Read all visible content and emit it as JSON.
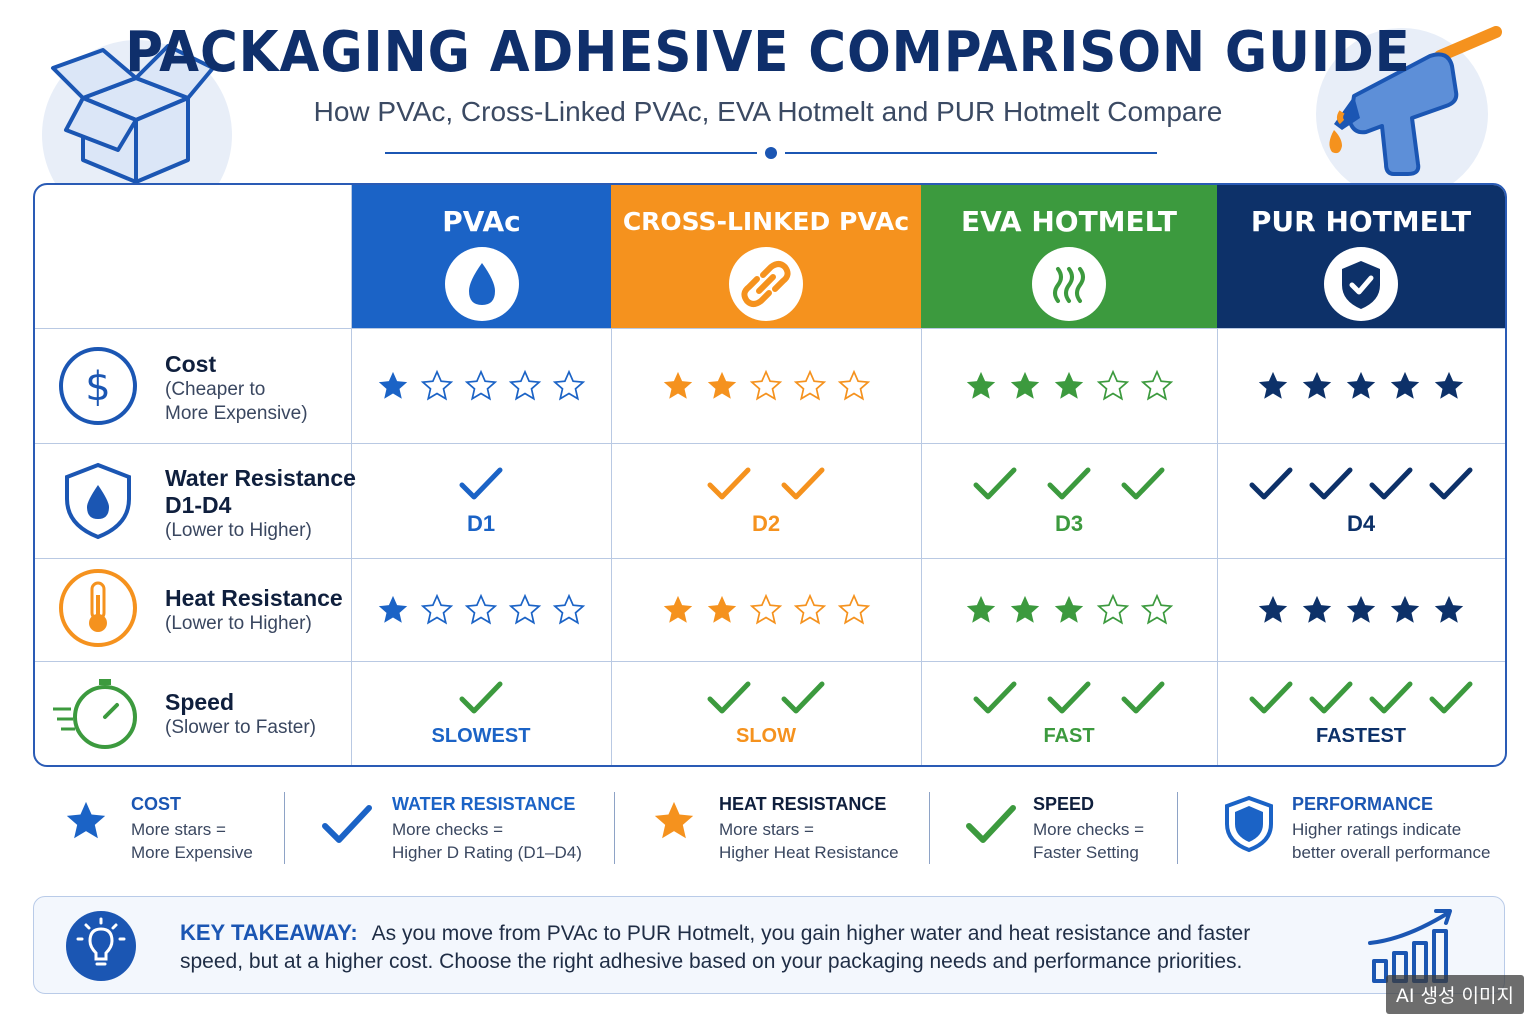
{
  "header": {
    "title": "PACKAGING ADHESIVE COMPARISON GUIDE",
    "subtitle": "How PVAc, Cross-Linked PVAc, EVA Hotmelt and PUR Hotmelt Compare"
  },
  "colors": {
    "pvac": "#1b63c6",
    "cross_linked": "#f5921e",
    "eva": "#3c9a3e",
    "pur": "#0d3169",
    "navy": "#0f2f6b"
  },
  "columns": [
    {
      "label": "PVAc",
      "icon": "water-drop-icon"
    },
    {
      "label": "CROSS-LINKED PVAc",
      "icon": "chain-link-icon"
    },
    {
      "label": "EVA HOTMELT",
      "icon": "heat-waves-icon"
    },
    {
      "label": "PUR HOTMELT",
      "icon": "shield-check-icon"
    }
  ],
  "rows": {
    "cost": {
      "title": "Cost",
      "sub1": "(Cheaper to",
      "sub2": "More Expensive)",
      "icon": "dollar-icon",
      "ratings": [
        1,
        2,
        3,
        5
      ],
      "max": 5
    },
    "water": {
      "title": "Water Resistance",
      "title2": "D1-D4",
      "sub1": "(Lower to Higher)",
      "icon": "water-shield-icon",
      "checks": [
        1,
        2,
        3,
        4
      ],
      "labels": [
        "D1",
        "D2",
        "D3",
        "D4"
      ]
    },
    "heat": {
      "title": "Heat Resistance",
      "sub1": "(Lower to Higher)",
      "icon": "thermometer-icon",
      "ratings": [
        1,
        2,
        3,
        5
      ],
      "max": 5
    },
    "speed": {
      "title": "Speed",
      "sub1": "(Slower to Faster)",
      "icon": "stopwatch-icon",
      "checks": [
        1,
        2,
        3,
        4
      ],
      "labels": [
        "SLOWEST",
        "SLOW",
        "FAST",
        "FASTEST"
      ]
    }
  },
  "legend": [
    {
      "title": "COST",
      "line1": "More stars =",
      "line2": "More Expensive",
      "icon": "star-icon"
    },
    {
      "title": "WATER RESISTANCE",
      "line1": "More checks =",
      "line2": "Higher D Rating (D1–D4)",
      "icon": "check-icon"
    },
    {
      "title": "HEAT RESISTANCE",
      "line1": "More stars =",
      "line2": "Higher Heat Resistance",
      "icon": "star-icon"
    },
    {
      "title": "SPEED",
      "line1": "More checks =",
      "line2": "Faster Setting",
      "icon": "check-icon"
    },
    {
      "title": "PERFORMANCE",
      "line1": "Higher ratings indicate",
      "line2": "better overall performance",
      "icon": "shield-icon"
    }
  ],
  "takeaway": {
    "label": "KEY TAKEAWAY:",
    "text": "As you move from PVAc to PUR Hotmelt, you gain higher water and heat resistance and faster speed, but at a higher cost. Choose the right adhesive based on your packaging needs and performance priorities."
  },
  "watermark": "AI 생성 이미지"
}
